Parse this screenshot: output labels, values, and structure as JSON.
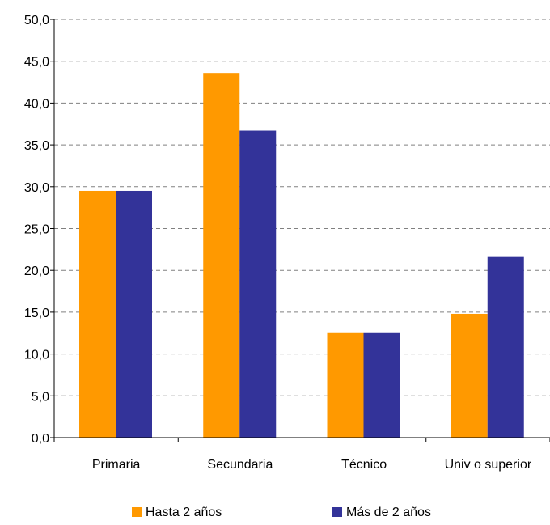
{
  "chart_data": {
    "type": "bar",
    "title": "",
    "xlabel": "",
    "ylabel": "",
    "categories": [
      "Primaria",
      "Secundaria",
      "Técnico",
      "Univ o superior"
    ],
    "series": [
      {
        "name": "Hasta 2 años",
        "values": [
          29.5,
          43.6,
          12.5,
          14.8
        ],
        "color": "#FF9900"
      },
      {
        "name": "Más de 2 años",
        "values": [
          29.5,
          36.7,
          12.5,
          21.6
        ],
        "color": "#333399"
      }
    ],
    "ylim": [
      0,
      50
    ],
    "yticks": [
      "0,0",
      "5,0",
      "10,0",
      "15,0",
      "20,0",
      "25,0",
      "30,0",
      "35,0",
      "40,0",
      "45,0",
      "50,0"
    ],
    "grid": "horizontal-dashed",
    "legend": "bottom"
  }
}
